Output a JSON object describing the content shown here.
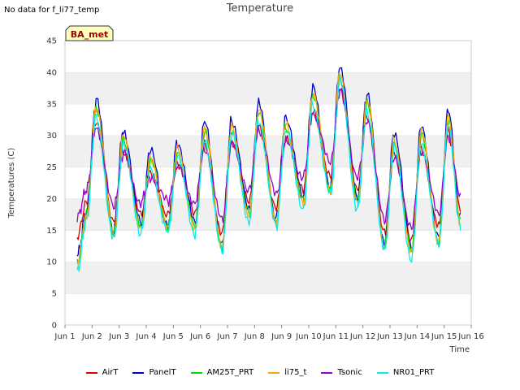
{
  "header": {
    "no_data_text": "No data for f_li77_temp"
  },
  "badge": {
    "label": "BA_met"
  },
  "chart_data": {
    "type": "line",
    "title": "Temperature",
    "xlabel": "Time",
    "ylabel": "Temperatures (C)",
    "xlim": [
      1,
      16
    ],
    "ylim": [
      0,
      45
    ],
    "x_ticks": [
      "Jun 1",
      "Jun 2",
      "Jun 3",
      "Jun 4",
      "Jun 5",
      "Jun 6",
      "Jun 7",
      "Jun 8",
      "Jun 9",
      "Jun 10",
      "Jun 11",
      "Jun 12",
      "Jun 13",
      "Jun 14",
      "Jun 15",
      "Jun 16"
    ],
    "y_ticks": [
      0,
      5,
      10,
      15,
      20,
      25,
      30,
      35,
      40,
      45
    ],
    "grid": "horizontal alternating bands",
    "legend_position": "bottom",
    "daily": {
      "days": [
        1.3,
        2,
        3,
        4,
        5,
        6,
        7,
        8,
        9,
        10,
        11,
        12,
        13,
        14,
        15
      ],
      "max_panel": [
        11,
        35.5,
        31,
        27.5,
        29,
        32,
        32.5,
        35,
        33,
        37.5,
        41,
        36.5,
        30.5,
        31.5,
        34
      ],
      "min_panel": [
        9,
        18,
        15,
        16,
        16,
        16,
        13,
        18,
        17,
        20,
        22,
        20,
        13,
        12,
        14
      ]
    },
    "series": [
      {
        "name": "AirT",
        "color": "#dd0000",
        "max_offset": -3.5,
        "min_offset": 1.5,
        "max_overrides": {
          "1.3": 14
        }
      },
      {
        "name": "PanelT",
        "color": "#0000cc",
        "max_offset": 0,
        "min_offset": 0
      },
      {
        "name": "AM25T_PRT",
        "color": "#00dd00",
        "max_offset": -1.5,
        "min_offset": -0.5
      },
      {
        "name": "li75_t",
        "color": "#ffa500",
        "max_offset": -1.0,
        "min_offset": -0.8
      },
      {
        "name": "Tsonic",
        "color": "#9900cc",
        "max_offset": -4.0,
        "min_offset": 3.5,
        "max_overrides": {
          "1.3": 17
        }
      },
      {
        "name": "NR01_PRT",
        "color": "#00eeee",
        "max_offset": -2.5,
        "min_offset": -1.5
      }
    ]
  }
}
